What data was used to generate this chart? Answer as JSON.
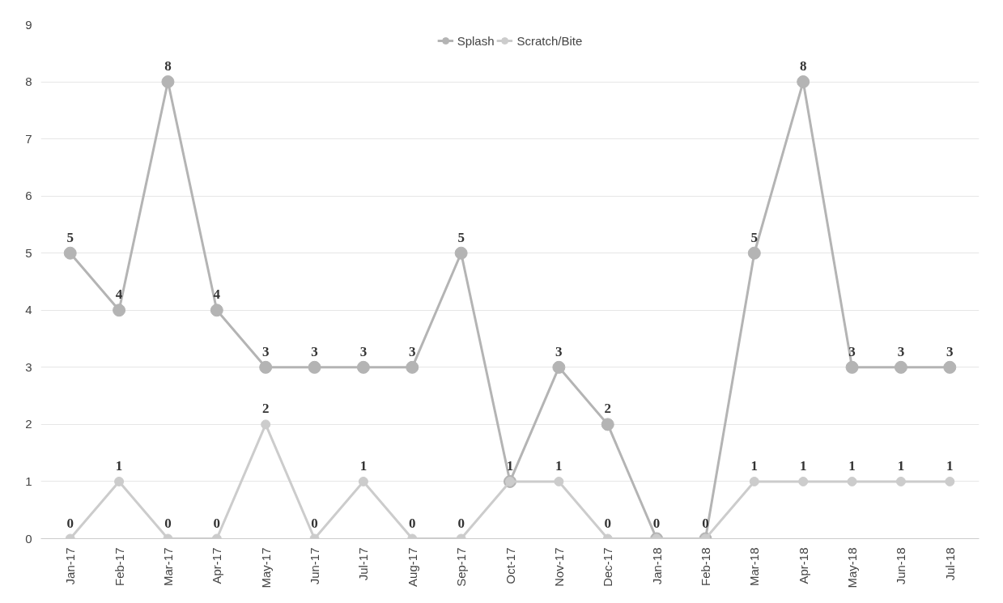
{
  "chart_data": {
    "type": "line",
    "categories": [
      "Jan-17",
      "Feb-17",
      "Mar-17",
      "Apr-17",
      "May-17",
      "Jun-17",
      "Jul-17",
      "Aug-17",
      "Sep-17",
      "Oct-17",
      "Nov-17",
      "Dec-17",
      "Jan-18",
      "Feb-18",
      "Mar-18",
      "Apr-18",
      "May-18",
      "Jun-18",
      "Jul-18"
    ],
    "series": [
      {
        "name": "Splash",
        "color": "#b4b4b4",
        "values": [
          5,
          4,
          8,
          4,
          3,
          3,
          3,
          3,
          5,
          1,
          3,
          2,
          0,
          0,
          5,
          8,
          3,
          3,
          3
        ],
        "value_labels": [
          "5",
          "4",
          "8",
          "4",
          "3",
          "3",
          "3",
          "3",
          "5",
          null,
          "3",
          "2",
          null,
          null,
          "5",
          "8",
          "3",
          "3",
          "3"
        ]
      },
      {
        "name": "Scratch/Bite",
        "color": "#cccccc",
        "values": [
          0,
          1,
          0,
          0,
          2,
          0,
          1,
          0,
          0,
          1,
          1,
          0,
          0,
          0,
          1,
          1,
          1,
          1,
          1
        ],
        "value_labels": [
          "0",
          "1",
          "0",
          "0",
          "2",
          "0",
          "1",
          "0",
          "0",
          "1",
          "1",
          "0",
          "0",
          "0",
          "1",
          "1",
          "1",
          "1",
          "1"
        ]
      }
    ],
    "ylim": [
      0,
      9
    ],
    "yticks": [
      0,
      1,
      2,
      3,
      4,
      5,
      6,
      7,
      8,
      9
    ],
    "grid": "y",
    "legend": "top",
    "marker": "circle",
    "line_style": "solid"
  }
}
